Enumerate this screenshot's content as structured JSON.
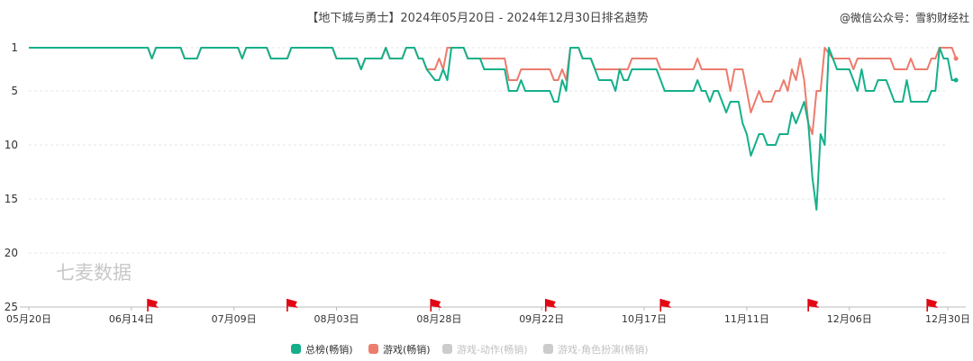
{
  "chart_data": {
    "type": "line",
    "title": "【地下城与勇士】2024年05月20日 - 2024年12月30日排名趋势",
    "source_watermark": "@微信公众号：雪豹财经社",
    "brand_watermark": "七麦数据",
    "y_reversed": true,
    "ylim": [
      1,
      25
    ],
    "yticks": [
      "1",
      "5",
      "10",
      "15",
      "20",
      "25"
    ],
    "x_tick_labels": [
      "05月20日",
      "06月14日",
      "07月09日",
      "08月03日",
      "08月28日",
      "09月22日",
      "10月17日",
      "11月11日",
      "12月06日",
      "12月30日"
    ],
    "x_tick_days": [
      0,
      25,
      50,
      75,
      100,
      125,
      150,
      175,
      200,
      224
    ],
    "xlim_days": [
      0,
      224
    ],
    "event_flag_days": [
      29,
      63,
      98,
      126,
      154,
      190,
      219
    ],
    "grid": "horizontal-dashed",
    "legend_position": "bottom",
    "series": [
      {
        "name": "总榜(畅销)",
        "color": "#15b08a",
        "active": true,
        "points": [
          [
            0,
            1
          ],
          [
            29,
            1
          ],
          [
            30,
            2
          ],
          [
            31,
            1
          ],
          [
            37,
            1
          ],
          [
            38,
            2
          ],
          [
            41,
            2
          ],
          [
            42,
            1
          ],
          [
            51,
            1
          ],
          [
            52,
            2
          ],
          [
            53,
            1
          ],
          [
            58,
            1
          ],
          [
            59,
            2
          ],
          [
            63,
            2
          ],
          [
            64,
            1
          ],
          [
            74,
            1
          ],
          [
            75,
            2
          ],
          [
            80,
            2
          ],
          [
            81,
            3
          ],
          [
            82,
            2
          ],
          [
            86,
            2
          ],
          [
            87,
            1
          ],
          [
            88,
            2
          ],
          [
            91,
            2
          ],
          [
            92,
            1
          ],
          [
            94,
            1
          ],
          [
            95,
            2
          ],
          [
            96,
            2
          ],
          [
            97,
            3
          ],
          [
            99,
            4
          ],
          [
            100,
            4
          ],
          [
            101,
            3
          ],
          [
            102,
            4
          ],
          [
            103,
            1
          ],
          [
            106,
            1
          ],
          [
            107,
            2
          ],
          [
            110,
            2
          ],
          [
            111,
            3
          ],
          [
            116,
            3
          ],
          [
            117,
            5
          ],
          [
            119,
            5
          ],
          [
            120,
            4
          ],
          [
            121,
            5
          ],
          [
            127,
            5
          ],
          [
            128,
            6
          ],
          [
            129,
            6
          ],
          [
            130,
            4
          ],
          [
            131,
            5
          ],
          [
            132,
            1
          ],
          [
            134,
            1
          ],
          [
            135,
            2
          ],
          [
            137,
            2
          ],
          [
            138,
            3
          ],
          [
            139,
            4
          ],
          [
            142,
            4
          ],
          [
            143,
            5
          ],
          [
            144,
            3
          ],
          [
            145,
            4
          ],
          [
            146,
            4
          ],
          [
            147,
            3
          ],
          [
            153,
            3
          ],
          [
            154,
            4
          ],
          [
            155,
            5
          ],
          [
            162,
            5
          ],
          [
            163,
            4
          ],
          [
            164,
            5
          ],
          [
            165,
            5
          ],
          [
            166,
            6
          ],
          [
            167,
            5
          ],
          [
            168,
            5
          ],
          [
            169,
            6
          ],
          [
            170,
            7
          ],
          [
            171,
            6
          ],
          [
            173,
            6
          ],
          [
            174,
            8
          ],
          [
            175,
            9
          ],
          [
            176,
            11
          ],
          [
            177,
            10
          ],
          [
            178,
            9
          ],
          [
            179,
            9
          ],
          [
            180,
            10
          ],
          [
            182,
            10
          ],
          [
            183,
            9
          ],
          [
            185,
            9
          ],
          [
            186,
            7
          ],
          [
            187,
            8
          ],
          [
            188,
            7
          ],
          [
            189,
            6
          ],
          [
            190,
            8
          ],
          [
            191,
            13
          ],
          [
            192,
            16
          ],
          [
            193,
            9
          ],
          [
            194,
            10
          ],
          [
            195,
            1
          ],
          [
            197,
            3
          ],
          [
            200,
            3
          ],
          [
            201,
            4
          ],
          [
            202,
            5
          ],
          [
            203,
            3
          ],
          [
            204,
            5
          ],
          [
            206,
            5
          ],
          [
            207,
            4
          ],
          [
            209,
            4
          ],
          [
            210,
            5
          ],
          [
            211,
            6
          ],
          [
            213,
            6
          ],
          [
            214,
            4
          ],
          [
            215,
            6
          ],
          [
            219,
            6
          ],
          [
            220,
            5
          ],
          [
            221,
            5
          ],
          [
            222,
            1
          ],
          [
            223,
            2
          ],
          [
            224,
            2
          ],
          [
            225,
            4
          ],
          [
            226,
            4
          ]
        ]
      },
      {
        "name": "游戏(畅销)",
        "color": "#ec7c6d",
        "active": true,
        "points": [
          [
            0,
            1
          ],
          [
            29,
            1
          ],
          [
            30,
            2
          ],
          [
            31,
            1
          ],
          [
            37,
            1
          ],
          [
            38,
            2
          ],
          [
            41,
            2
          ],
          [
            42,
            1
          ],
          [
            51,
            1
          ],
          [
            52,
            2
          ],
          [
            53,
            1
          ],
          [
            58,
            1
          ],
          [
            59,
            2
          ],
          [
            63,
            2
          ],
          [
            64,
            1
          ],
          [
            74,
            1
          ],
          [
            75,
            2
          ],
          [
            80,
            2
          ],
          [
            81,
            3
          ],
          [
            82,
            2
          ],
          [
            86,
            2
          ],
          [
            87,
            1
          ],
          [
            88,
            2
          ],
          [
            91,
            2
          ],
          [
            92,
            1
          ],
          [
            94,
            1
          ],
          [
            95,
            2
          ],
          [
            96,
            2
          ],
          [
            97,
            3
          ],
          [
            99,
            3
          ],
          [
            100,
            2
          ],
          [
            101,
            3
          ],
          [
            102,
            1
          ],
          [
            106,
            1
          ],
          [
            107,
            2
          ],
          [
            110,
            2
          ],
          [
            111,
            2
          ],
          [
            116,
            2
          ],
          [
            117,
            4
          ],
          [
            119,
            4
          ],
          [
            120,
            3
          ],
          [
            127,
            3
          ],
          [
            128,
            4
          ],
          [
            129,
            4
          ],
          [
            130,
            3
          ],
          [
            131,
            4
          ],
          [
            132,
            1
          ],
          [
            134,
            1
          ],
          [
            135,
            2
          ],
          [
            137,
            2
          ],
          [
            138,
            3
          ],
          [
            146,
            3
          ],
          [
            147,
            2
          ],
          [
            153,
            2
          ],
          [
            154,
            3
          ],
          [
            155,
            3
          ],
          [
            162,
            3
          ],
          [
            163,
            2
          ],
          [
            164,
            3
          ],
          [
            170,
            3
          ],
          [
            171,
            5
          ],
          [
            172,
            3
          ],
          [
            174,
            3
          ],
          [
            175,
            5
          ],
          [
            176,
            7
          ],
          [
            177,
            6
          ],
          [
            178,
            5
          ],
          [
            179,
            6
          ],
          [
            181,
            6
          ],
          [
            182,
            5
          ],
          [
            183,
            5
          ],
          [
            184,
            4
          ],
          [
            185,
            5
          ],
          [
            186,
            3
          ],
          [
            187,
            4
          ],
          [
            188,
            2
          ],
          [
            189,
            4
          ],
          [
            190,
            8
          ],
          [
            191,
            9
          ],
          [
            192,
            5
          ],
          [
            193,
            5
          ],
          [
            194,
            1
          ],
          [
            196,
            2
          ],
          [
            200,
            2
          ],
          [
            201,
            3
          ],
          [
            202,
            2
          ],
          [
            210,
            2
          ],
          [
            211,
            3
          ],
          [
            214,
            3
          ],
          [
            215,
            2
          ],
          [
            216,
            3
          ],
          [
            219,
            3
          ],
          [
            220,
            2
          ],
          [
            221,
            2
          ],
          [
            222,
            1
          ],
          [
            225,
            1
          ],
          [
            226,
            2
          ]
        ]
      },
      {
        "name": "游戏-动作(畅销)",
        "color": "#cccccc",
        "active": false,
        "points": []
      },
      {
        "name": "游戏-角色扮演(畅销)",
        "color": "#cccccc",
        "active": false,
        "points": []
      }
    ]
  }
}
